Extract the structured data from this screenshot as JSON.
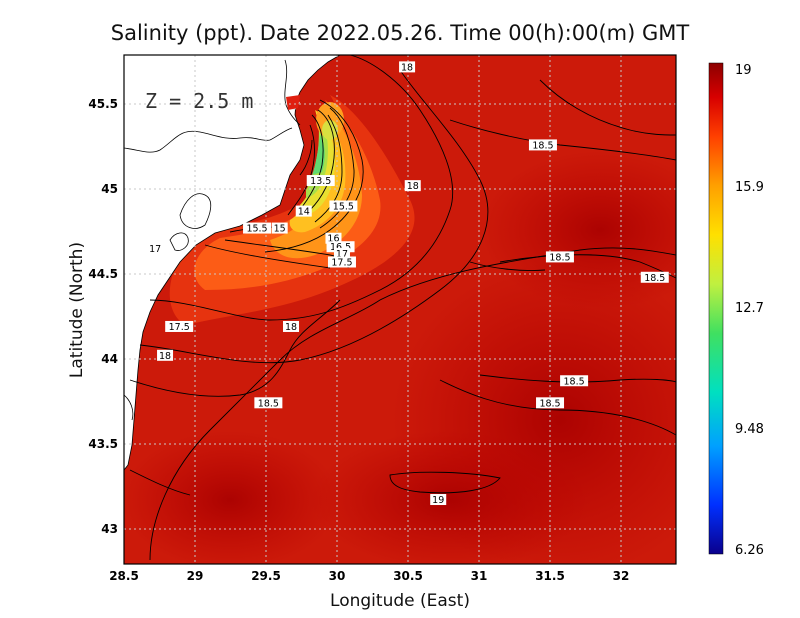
{
  "title": "Salinity (ppt). Date 2022.05.26. Time 00(h):00(m) GMT",
  "depth_label": "Z = 2.5 m",
  "chart_data": {
    "type": "heatmap",
    "variable": "Salinity (ppt)",
    "xlabel": "Longitude (East)",
    "ylabel": "Latitude (North)",
    "xlim": [
      28.5,
      32.4
    ],
    "ylim": [
      42.8,
      45.8
    ],
    "x_ticks": [
      "28.5",
      "29",
      "29.5",
      "30",
      "30.5",
      "31",
      "31.5",
      "32"
    ],
    "y_ticks": [
      "43",
      "43.5",
      "44",
      "44.5",
      "45",
      "45.5"
    ],
    "grid": "dotted",
    "colorbar": {
      "min": 6.26,
      "max": 19,
      "tick_labels": [
        "19",
        "15.9",
        "12.7",
        "9.48",
        "6.26"
      ],
      "colors": [
        "#0a008c",
        "#0030ff",
        "#00b0ff",
        "#00e0c0",
        "#40e060",
        "#c0f040",
        "#ffe000",
        "#ff9000",
        "#ff3000",
        "#d00000",
        "#8c0000"
      ]
    },
    "contour_labels": [
      {
        "text": "18",
        "lon": 30.5,
        "lat": 45.73
      },
      {
        "text": "18.5",
        "lon": 31.46,
        "lat": 45.27
      },
      {
        "text": "18",
        "lon": 30.54,
        "lat": 45.03
      },
      {
        "text": "13.5",
        "lon": 29.89,
        "lat": 45.06
      },
      {
        "text": "15.5",
        "lon": 30.05,
        "lat": 44.91
      },
      {
        "text": "14",
        "lon": 29.77,
        "lat": 44.88
      },
      {
        "text": "15.5",
        "lon": 29.44,
        "lat": 44.78
      },
      {
        "text": "15",
        "lon": 29.6,
        "lat": 44.78
      },
      {
        "text": "16",
        "lon": 29.98,
        "lat": 44.72
      },
      {
        "text": "16.5",
        "lon": 30.03,
        "lat": 44.67
      },
      {
        "text": "17",
        "lon": 30.04,
        "lat": 44.63
      },
      {
        "text": "17.5",
        "lon": 30.04,
        "lat": 44.58
      },
      {
        "text": "17",
        "lon": 28.72,
        "lat": 44.66
      },
      {
        "text": "18.5",
        "lon": 31.58,
        "lat": 44.61
      },
      {
        "text": "18.5",
        "lon": 32.25,
        "lat": 44.49
      },
      {
        "text": "17.5",
        "lon": 28.89,
        "lat": 44.2
      },
      {
        "text": "18",
        "lon": 29.68,
        "lat": 44.2
      },
      {
        "text": "18",
        "lon": 28.79,
        "lat": 44.03
      },
      {
        "text": "18.5",
        "lon": 31.68,
        "lat": 43.88
      },
      {
        "text": "18.5",
        "lon": 29.52,
        "lat": 43.75
      },
      {
        "text": "18.5",
        "lon": 31.51,
        "lat": 43.75
      },
      {
        "text": "19",
        "lon": 30.72,
        "lat": 43.18
      }
    ]
  }
}
